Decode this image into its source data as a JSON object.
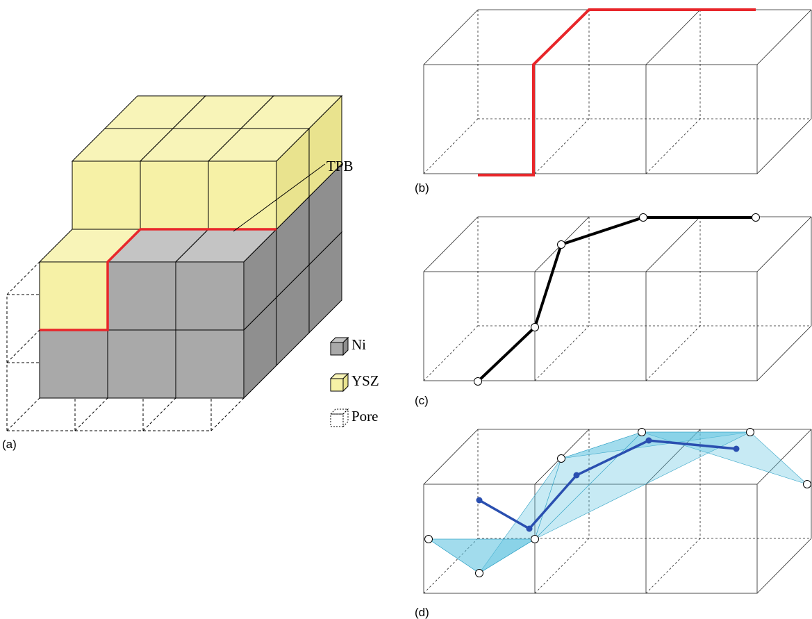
{
  "panel_a": {
    "label": "(a)",
    "annotation": "TPB",
    "legend": [
      {
        "label": "Ni"
      },
      {
        "label": "YSZ"
      },
      {
        "label": "Pore"
      }
    ]
  },
  "panel_b": {
    "label": "(b)"
  },
  "panel_c": {
    "label": "(c)"
  },
  "panel_d": {
    "label": "(d)"
  }
}
